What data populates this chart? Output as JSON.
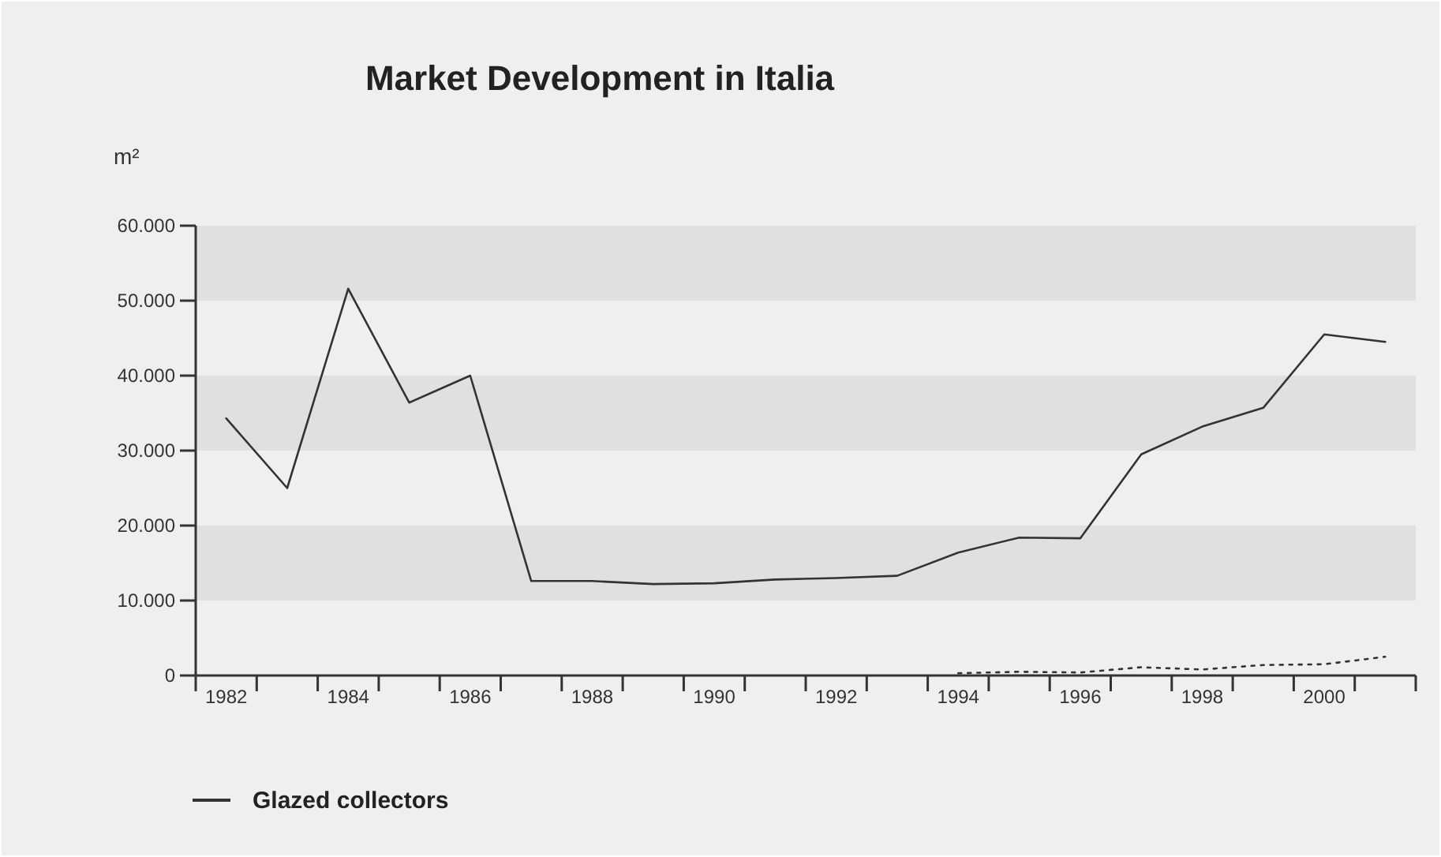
{
  "chart_data": {
    "type": "line",
    "title": "Market Development in Italia",
    "ylabel": "m²",
    "categories": [
      "1982",
      null,
      "1984",
      null,
      "1986",
      null,
      "1988",
      null,
      "1990",
      null,
      "1992",
      null,
      "1994",
      null,
      "1996",
      null,
      "1998",
      null,
      "2000",
      null
    ],
    "series": [
      {
        "name": "Glazed collectors",
        "color": "#333333",
        "line_style": "solid",
        "values": [
          34300,
          25000,
          51600,
          36400,
          40000,
          12600,
          12600,
          12200,
          12300,
          12800,
          13000,
          13300,
          16400,
          18400,
          18300,
          29500,
          33200,
          35700,
          45500,
          44500
        ]
      },
      {
        "color": "#333333",
        "line_style": "dotted",
        "values": [
          null,
          null,
          null,
          null,
          null,
          null,
          null,
          null,
          null,
          null,
          null,
          null,
          300,
          500,
          400,
          1100,
          800,
          1400,
          1500,
          2500
        ]
      }
    ],
    "ylim": [
      0,
      60000
    ],
    "yticks": [
      {
        "value": 0,
        "label": "0"
      },
      {
        "value": 10000,
        "label": "10.000"
      },
      {
        "value": 20000,
        "label": "20.000"
      },
      {
        "value": 30000,
        "label": "30.000"
      },
      {
        "value": 40000,
        "label": "40.000"
      },
      {
        "value": 50000,
        "label": "50.000"
      },
      {
        "value": 60000,
        "label": "60.000"
      }
    ],
    "bands": [
      {
        "axis": "y",
        "from": 10000,
        "to": 20000,
        "color": "#e0e0e0"
      },
      {
        "axis": "y",
        "from": 30000,
        "to": 40000,
        "color": "#e0e0e0"
      },
      {
        "axis": "y",
        "from": 50000,
        "to": 60000,
        "color": "#e0e0e0"
      }
    ],
    "grid": false,
    "legend": "bottom left",
    "marker": "none"
  }
}
